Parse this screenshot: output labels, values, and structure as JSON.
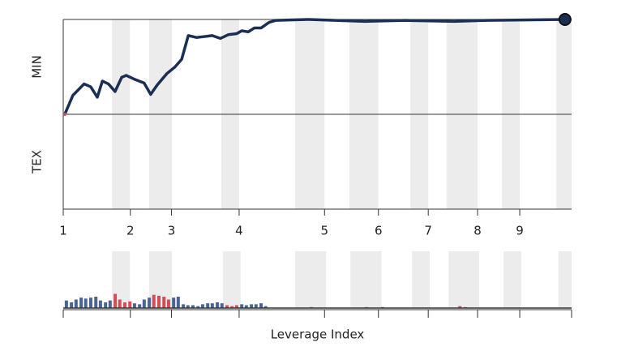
{
  "chart_data": [
    {
      "type": "line",
      "rows": [
        "MIN",
        "TEX"
      ],
      "color": "#1b2f55",
      "x": [
        0.3,
        1.9,
        4.1,
        5.4,
        6.7,
        7.7,
        8.9,
        10.2,
        11.5,
        12.4,
        14.0,
        15.9,
        17.2,
        18.5,
        20.4,
        22.0,
        23.3,
        24.6,
        26.2,
        27.8,
        29.3,
        30.9,
        32.5,
        34.1,
        35.1,
        36.4,
        37.6,
        38.9,
        40.5,
        41.8,
        48.2,
        59.3,
        67.3,
        76.9,
        83.3,
        98.7
      ],
      "values": [
        0,
        0.2,
        0.32,
        0.29,
        0.18,
        0.35,
        0.32,
        0.24,
        0.39,
        0.41,
        0.37,
        0.33,
        0.21,
        0.31,
        0.43,
        0.5,
        0.58,
        0.83,
        0.81,
        0.82,
        0.83,
        0.8,
        0.84,
        0.85,
        0.88,
        0.87,
        0.91,
        0.91,
        0.97,
        0.99,
        1,
        0.98,
        0.99,
        0.98,
        0.99,
        1
      ],
      "ylim": [
        0,
        1
      ],
      "xlim": [
        0,
        100
      ],
      "xticks": [
        {
          "value": 0,
          "label": "1"
        },
        {
          "value": 13.2,
          "label": "2"
        },
        {
          "value": 21.3,
          "label": "3"
        },
        {
          "value": 34.6,
          "label": "4"
        },
        {
          "value": 51.4,
          "label": "5"
        },
        {
          "value": 62.0,
          "label": "6"
        },
        {
          "value": 71.8,
          "label": "7"
        },
        {
          "value": 81.5,
          "label": "8"
        },
        {
          "value": 89.8,
          "label": "9"
        }
      ],
      "bands": [
        [
          9.6,
          13.1
        ],
        [
          16.9,
          21.4
        ],
        [
          31.1,
          34.6
        ],
        [
          45.6,
          51.4
        ],
        [
          56.3,
          62.0
        ],
        [
          68.3,
          71.8
        ],
        [
          75.4,
          81.5
        ],
        [
          86.3,
          89.8
        ],
        [
          97.0,
          100
        ]
      ]
    },
    {
      "type": "bar",
      "x_label": "Leverage Index",
      "xlim": [
        0,
        100
      ],
      "ylim": [
        0,
        60
      ],
      "xticks": [
        0,
        13.2,
        21.3,
        34.6,
        51.4,
        62.0,
        71.8,
        81.5,
        89.8,
        100
      ],
      "bands": [
        [
          9.6,
          13.1
        ],
        [
          16.9,
          21.4
        ],
        [
          31.4,
          34.9
        ],
        [
          45.6,
          51.7
        ],
        [
          56.5,
          62.6
        ],
        [
          68.6,
          72.1
        ],
        [
          75.8,
          81.8
        ],
        [
          86.6,
          90.1
        ],
        [
          97.4,
          100
        ]
      ],
      "x": [
        0.3,
        1.3,
        2.2,
        3.2,
        4.1,
        5.1,
        6.1,
        7.0,
        8.0,
        8.9,
        9.9,
        10.8,
        11.8,
        12.8,
        13.7,
        14.7,
        15.6,
        16.6,
        17.5,
        18.5,
        19.5,
        20.4,
        21.4,
        22.3,
        23.3,
        24.2,
        25.2,
        26.2,
        27.1,
        28.1,
        29.0,
        30.0,
        30.9,
        31.9,
        32.9,
        33.8,
        34.8,
        35.7,
        36.7,
        37.6,
        38.6,
        39.5,
        48.5,
        59.3,
        62.5,
        77.7,
        78.8
      ],
      "values": [
        8,
        6,
        9,
        11,
        10,
        11,
        12,
        8,
        6,
        8,
        15,
        9,
        6,
        7,
        5,
        4,
        9,
        11,
        14,
        13,
        12,
        9,
        11,
        12,
        4,
        3,
        3,
        2,
        4,
        5,
        5,
        6,
        5,
        3,
        2,
        3,
        4,
        3,
        4,
        4,
        5,
        2,
        1,
        1,
        1,
        2,
        1
      ],
      "colors": [
        "#4a6590",
        "#4a6590",
        "#4a6590",
        "#4a6590",
        "#4a6590",
        "#4a6590",
        "#4a6590",
        "#4a6590",
        "#4a6590",
        "#4a6590",
        "#d0505a",
        "#d0505a",
        "#d0505a",
        "#d0505a",
        "#4a6590",
        "#4a6590",
        "#4a6590",
        "#4a6590",
        "#d0505a",
        "#d0505a",
        "#d0505a",
        "#d0505a",
        "#4a6590",
        "#4a6590",
        "#4a6590",
        "#4a6590",
        "#4a6590",
        "#4a6590",
        "#4a6590",
        "#4a6590",
        "#4a6590",
        "#4a6590",
        "#4a6590",
        "#d0505a",
        "#d0505a",
        "#d0505a",
        "#4a6590",
        "#4a6590",
        "#4a6590",
        "#4a6590",
        "#4a6590",
        "#4a6590",
        "#d0505a",
        "#d0505a",
        "#4a6590",
        "#d0505a",
        "#d0505a"
      ]
    }
  ]
}
